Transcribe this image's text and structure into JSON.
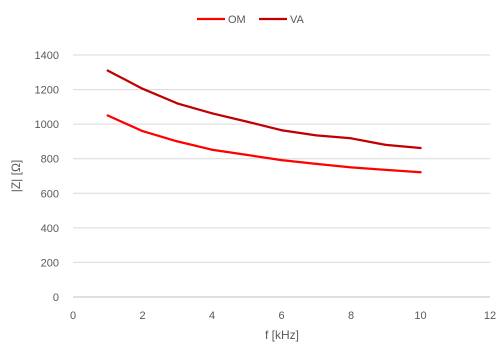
{
  "chart_data": {
    "type": "line",
    "title": "",
    "xlabel": "f [kHz]",
    "ylabel": "|Z| [Ω]",
    "xlim": [
      0,
      12
    ],
    "ylim": [
      0,
      1400
    ],
    "xticks": [
      0,
      2,
      4,
      6,
      8,
      10,
      12
    ],
    "yticks": [
      0,
      200,
      400,
      600,
      800,
      1000,
      1200,
      1400
    ],
    "grid": "horizontal",
    "legend_position": "top",
    "x": [
      1,
      2,
      3,
      4,
      5,
      6,
      7,
      8,
      9,
      10
    ],
    "series": [
      {
        "name": "OM",
        "color": "#ff0000",
        "values": [
          1050,
          960,
          900,
          852,
          822,
          792,
          770,
          750,
          735,
          722
        ]
      },
      {
        "name": "VA",
        "color": "#c00000",
        "values": [
          1310,
          1205,
          1120,
          1063,
          1015,
          965,
          935,
          918,
          880,
          862
        ]
      }
    ]
  }
}
